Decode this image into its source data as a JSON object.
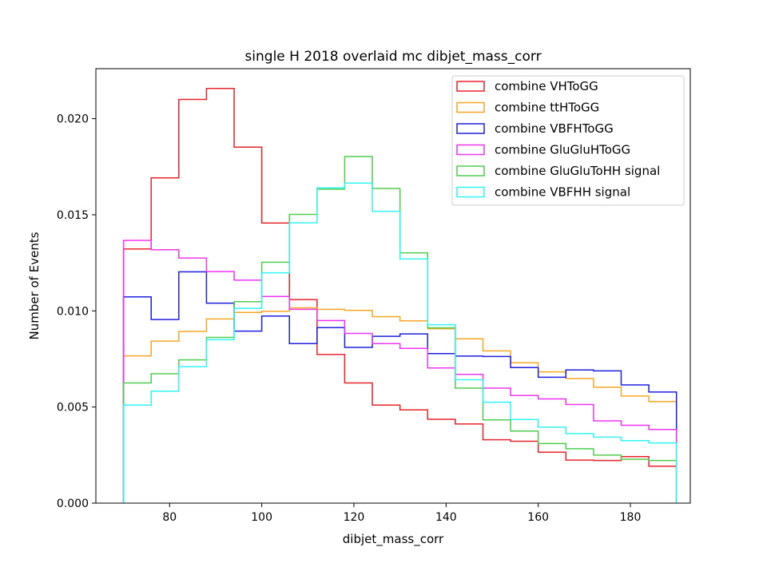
{
  "chart_data": {
    "type": "histogram-step",
    "title": "single H 2018 overlaid mc dibjet_mass_corr",
    "xlabel": "dibjet_mass_corr",
    "ylabel": "Number of Events",
    "xlim": [
      64,
      193
    ],
    "ylim": [
      0,
      0.0226
    ],
    "xticks": [
      80,
      100,
      120,
      140,
      160,
      180
    ],
    "yticks": [
      0.0,
      0.005,
      0.01,
      0.015,
      0.02
    ],
    "ytick_labels": [
      "0.000",
      "0.005",
      "0.010",
      "0.015",
      "0.020"
    ],
    "grid": false,
    "legend_position": "top-right",
    "bin_edges": [
      70,
      76,
      82,
      88,
      94,
      100,
      106,
      112,
      118,
      124,
      130,
      136,
      142,
      148,
      154,
      160,
      166,
      172,
      178,
      184,
      190
    ],
    "series": [
      {
        "name": "combine VHToGG",
        "color": "#e8232a",
        "values": [
          0.01322,
          0.01692,
          0.021,
          0.02157,
          0.01852,
          0.01457,
          0.01059,
          0.00773,
          0.00625,
          0.0051,
          0.00485,
          0.00436,
          0.00412,
          0.0033,
          0.00322,
          0.00265,
          0.00224,
          0.00222,
          0.00242,
          0.00192
        ]
      },
      {
        "name": "combine ttHToGG",
        "color": "#f7a623",
        "values": [
          0.00766,
          0.00843,
          0.00893,
          0.00958,
          0.00992,
          0.00998,
          0.01016,
          0.01008,
          0.01003,
          0.0097,
          0.00948,
          0.00907,
          0.00855,
          0.00792,
          0.0073,
          0.00683,
          0.00648,
          0.00603,
          0.00557,
          0.00528
        ]
      },
      {
        "name": "combine VBFHToGG",
        "color": "#1e1edf",
        "values": [
          0.01073,
          0.00955,
          0.01203,
          0.0104,
          0.00895,
          0.00973,
          0.0083,
          0.00913,
          0.0081,
          0.00868,
          0.0088,
          0.00778,
          0.00765,
          0.00763,
          0.00705,
          0.00655,
          0.00693,
          0.00688,
          0.00615,
          0.00578
        ]
      },
      {
        "name": "combine GluGluHToGG",
        "color": "#f035f0",
        "values": [
          0.01367,
          0.01318,
          0.01275,
          0.01205,
          0.0116,
          0.01075,
          0.01008,
          0.0095,
          0.00883,
          0.0083,
          0.00805,
          0.00703,
          0.0067,
          0.00598,
          0.0056,
          0.00542,
          0.00513,
          0.00428,
          0.00405,
          0.00383
        ]
      },
      {
        "name": "combine GluGluToHH signal",
        "color": "#4fcd4f",
        "values": [
          0.00625,
          0.00673,
          0.00745,
          0.00862,
          0.01048,
          0.01253,
          0.01502,
          0.01633,
          0.01803,
          0.01637,
          0.01302,
          0.00912,
          0.00598,
          0.00433,
          0.00375,
          0.0031,
          0.00283,
          0.0025,
          0.00228,
          0.00222
        ]
      },
      {
        "name": "combine VBFHH signal",
        "color": "#32f4f4",
        "values": [
          0.0051,
          0.00582,
          0.0071,
          0.0085,
          0.01013,
          0.01198,
          0.01458,
          0.0164,
          0.01665,
          0.01518,
          0.0127,
          0.00928,
          0.00642,
          0.00525,
          0.00435,
          0.00395,
          0.00362,
          0.00343,
          0.00325,
          0.00313
        ]
      }
    ]
  }
}
